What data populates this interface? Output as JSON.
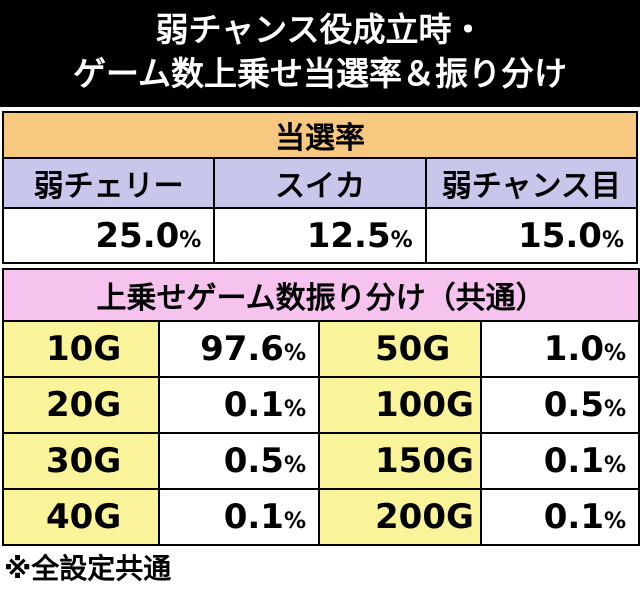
{
  "title": {
    "line1": "弱チャンス役成立時・",
    "line2": "ゲーム数上乗せ当選率＆振り分け"
  },
  "rate_table": {
    "header": "当選率",
    "columns": [
      "弱チェリー",
      "スイカ",
      "弱チャンス目"
    ],
    "values": [
      "25.0",
      "12.5",
      "15.0"
    ],
    "unit": "%"
  },
  "dist_table": {
    "header": "上乗せゲーム数振り分け（共通）",
    "rows": [
      {
        "g1": "10G",
        "p1": "97.6",
        "g2": "50G",
        "p2": "1.0"
      },
      {
        "g1": "20G",
        "p1": "0.1",
        "g2": "100G",
        "p2": "0.5"
      },
      {
        "g1": "30G",
        "p1": "0.5",
        "g2": "150G",
        "p2": "0.1"
      },
      {
        "g1": "40G",
        "p1": "0.1",
        "g2": "200G",
        "p2": "0.1"
      }
    ],
    "unit": "%"
  },
  "note": "※全設定共通",
  "colors": {
    "title_bg": "#000000",
    "orange_header": "#f7c87f",
    "lavender_header": "#c9c6ec",
    "pink_header": "#f6c3ef",
    "yellow_cell": "#f9f39a"
  }
}
